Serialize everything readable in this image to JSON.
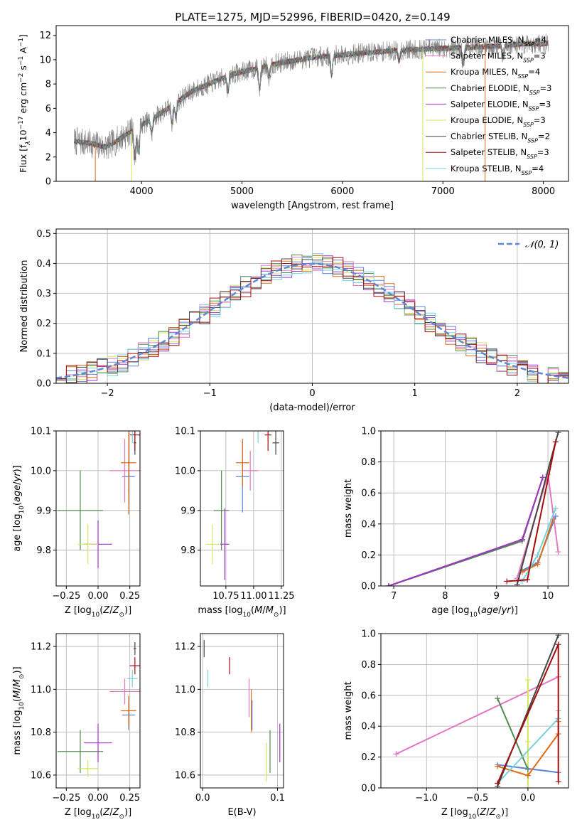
{
  "suptitle": "PLATE=1275, MJD=52996, FIBERID=0420, z=0.149",
  "colors": {
    "Chabrier MILES": "#5b87d6",
    "Salpeter MILES": "#e377c2",
    "Kroupa MILES": "#e06a14",
    "Chabrier ELODIE": "#4f8a4f",
    "Salpeter ELODIE": "#a233c8",
    "Kroupa ELODIE": "#d4e85a",
    "Chabrier STELIB": "#444444",
    "Salpeter STELIB": "#a50d0d",
    "Kroupa STELIB": "#77d1dc"
  },
  "chart_data": [
    {
      "id": "spectrum",
      "type": "line",
      "xlabel": "wavelength [Angstrom, rest frame]",
      "ylabel": "Flux [f_λ10^-17 erg cm^-2 s^-1 A^-1]",
      "xlim": [
        3150,
        8250
      ],
      "ylim": [
        0,
        12.8
      ],
      "xticks": [
        4000,
        5000,
        6000,
        7000,
        8000
      ],
      "yticks": [
        0,
        2,
        4,
        6,
        8,
        10,
        12
      ],
      "grid": false,
      "legend_position": "right",
      "legend": [
        {
          "label": "Chabrier MILES, N",
          "sub": "SSP",
          "suffix": "=4",
          "color_key": "Chabrier MILES"
        },
        {
          "label": "Salpeter MILES, N",
          "sub": "SSP",
          "suffix": "=3",
          "color_key": "Salpeter MILES"
        },
        {
          "label": "Kroupa MILES, N",
          "sub": "SSP",
          "suffix": "=4",
          "color_key": "Kroupa MILES"
        },
        {
          "label": "Chabrier ELODIE, N",
          "sub": "SSP",
          "suffix": "=3",
          "color_key": "Chabrier ELODIE"
        },
        {
          "label": "Salpeter ELODIE, N",
          "sub": "SSP",
          "suffix": "=3",
          "color_key": "Salpeter ELODIE"
        },
        {
          "label": "Kroupa ELODIE, N",
          "sub": "SSP",
          "suffix": "=3",
          "color_key": "Kroupa ELODIE"
        },
        {
          "label": "Chabrier STELIB, N",
          "sub": "SSP",
          "suffix": "=2",
          "color_key": "Chabrier STELIB"
        },
        {
          "label": "Salpeter STELIB, N",
          "sub": "SSP",
          "suffix": "=3",
          "color_key": "Salpeter STELIB"
        },
        {
          "label": "Kroupa STELIB, N",
          "sub": "SSP",
          "suffix": "=4",
          "color_key": "Kroupa STELIB"
        }
      ],
      "continuum": [
        [
          3330,
          3.3
        ],
        [
          3500,
          3.1
        ],
        [
          3650,
          2.8
        ],
        [
          3800,
          3.6
        ],
        [
          3950,
          4.4
        ],
        [
          4100,
          5.1
        ],
        [
          4300,
          6.2
        ],
        [
          4500,
          7.4
        ],
        [
          4700,
          8.1
        ],
        [
          4900,
          8.8
        ],
        [
          5100,
          9.2
        ],
        [
          5300,
          9.6
        ],
        [
          5500,
          9.9
        ],
        [
          5700,
          10.2
        ],
        [
          6000,
          10.4
        ],
        [
          6300,
          10.6
        ],
        [
          6600,
          10.8
        ],
        [
          6900,
          10.9
        ],
        [
          7200,
          11.0
        ],
        [
          7500,
          11.1
        ],
        [
          7800,
          11.3
        ],
        [
          8050,
          11.3
        ]
      ],
      "absorption_lines": [
        [
          3934,
          2.4
        ],
        [
          3969,
          2.2
        ],
        [
          4102,
          1.2
        ],
        [
          4304,
          1.4
        ],
        [
          4341,
          1.1
        ],
        [
          4861,
          1.3
        ],
        [
          5175,
          1.8
        ],
        [
          5270,
          0.9
        ],
        [
          5892,
          1.6
        ],
        [
          6563,
          0.8
        ],
        [
          7200,
          1.5
        ],
        [
          7600,
          1.0
        ]
      ],
      "edge_drops": [
        {
          "series": "Kroupa MILES",
          "x": 3540
        },
        {
          "series": "Kroupa ELODIE",
          "x": 3900
        },
        {
          "series": "Kroupa ELODIE",
          "x": 6800
        },
        {
          "series": "Kroupa MILES",
          "x": 7420
        }
      ]
    },
    {
      "id": "residuals",
      "type": "step-histogram",
      "xlabel": "(data-model)/error",
      "ylabel": "Normed distribution",
      "xlim": [
        -2.5,
        2.5
      ],
      "ylim": [
        0,
        0.515
      ],
      "xticks": [
        -2,
        -1,
        0,
        1,
        2
      ],
      "yticks": [
        0.0,
        0.1,
        0.2,
        0.3,
        0.4,
        0.5
      ],
      "grid": true,
      "bin_width": 0.1,
      "curve_label": "𝒩(0, 1)",
      "curve_color": "#5b87d6",
      "legend_position": "top-right"
    },
    {
      "id": "age-vs-Z",
      "type": "errorbar",
      "xlabel": "Z [log10(Z/Z⊙)]",
      "ylabel": "age  [log10(age/yr)]",
      "xlim": [
        -0.33,
        0.33
      ],
      "ylim": [
        9.71,
        10.1
      ],
      "xticks": [
        -0.25,
        0.0,
        0.25
      ],
      "yticks": [
        9.8,
        9.9,
        10.0,
        10.1
      ],
      "grid": true,
      "points": [
        {
          "series": "Chabrier MILES",
          "x": 0.24,
          "y": 9.985,
          "xerr": 0.05,
          "yerr": 0.04
        },
        {
          "series": "Salpeter MILES",
          "x": 0.21,
          "y": 10.0,
          "xerr": 0.12,
          "yerr": 0.08
        },
        {
          "series": "Kroupa MILES",
          "x": 0.24,
          "y": 10.02,
          "xerr": 0.06,
          "yerr": 0.13
        },
        {
          "series": "Chabrier ELODIE",
          "x": -0.14,
          "y": 9.9,
          "xerr": 0.18,
          "yerr": 0.1
        },
        {
          "series": "Salpeter ELODIE",
          "x": 0.0,
          "y": 9.815,
          "xerr": 0.11,
          "yerr": 0.06
        },
        {
          "series": "Kroupa ELODIE",
          "x": -0.08,
          "y": 9.815,
          "xerr": 0.08,
          "yerr": 0.05
        },
        {
          "series": "Chabrier STELIB",
          "x": 0.29,
          "y": 10.07,
          "xerr": 0.01,
          "yerr": 0.03
        },
        {
          "series": "Salpeter STELIB",
          "x": 0.29,
          "y": 10.09,
          "xerr": 0.04,
          "yerr": 0.04
        },
        {
          "series": "Kroupa STELIB",
          "x": 0.27,
          "y": 10.11,
          "xerr": 0.04,
          "yerr": 0.04
        }
      ]
    },
    {
      "id": "age-vs-mass",
      "type": "errorbar",
      "xlabel": "mass [log10(M/M⊙)]",
      "ylabel": "",
      "xlim": [
        10.52,
        11.27
      ],
      "ylim": [
        9.71,
        10.1
      ],
      "xticks": [
        10.75,
        11.0,
        11.25
      ],
      "yticks": [
        9.8,
        9.9,
        10.0,
        10.1
      ],
      "grid": true,
      "points": [
        {
          "series": "Chabrier MILES",
          "x": 10.9,
          "y": 9.985,
          "xerr": 0.06,
          "yerr": 0.09
        },
        {
          "series": "Salpeter MILES",
          "x": 10.97,
          "y": 10.0,
          "xerr": 0.07,
          "yerr": 0.05
        },
        {
          "series": "Kroupa MILES",
          "x": 10.9,
          "y": 10.02,
          "xerr": 0.06,
          "yerr": 0.06
        },
        {
          "series": "Chabrier ELODIE",
          "x": 10.71,
          "y": 9.9,
          "xerr": 0.07,
          "yerr": 0.1
        },
        {
          "series": "Salpeter ELODIE",
          "x": 10.74,
          "y": 9.815,
          "xerr": 0.04,
          "yerr": 0.09
        },
        {
          "series": "Kroupa ELODIE",
          "x": 10.63,
          "y": 9.815,
          "xerr": 0.06,
          "yerr": 0.05
        },
        {
          "series": "Chabrier STELIB",
          "x": 11.2,
          "y": 10.07,
          "xerr": 0.03,
          "yerr": 0.03
        },
        {
          "series": "Salpeter STELIB",
          "x": 11.13,
          "y": 10.09,
          "xerr": 0.03,
          "yerr": 0.04
        },
        {
          "series": "Kroupa STELIB",
          "x": 11.04,
          "y": 10.11,
          "xerr": 0.04,
          "yerr": 0.04
        }
      ]
    },
    {
      "id": "mass-weight-vs-age",
      "type": "line",
      "xlabel": "age  [log10(age/yr)]",
      "ylabel": "mass weight",
      "xlim": [
        6.75,
        10.4
      ],
      "ylim": [
        0,
        1.0
      ],
      "xticks": [
        7,
        8,
        9,
        10
      ],
      "yticks": [
        0.0,
        0.2,
        0.4,
        0.6,
        0.8,
        1.0
      ],
      "grid": true,
      "series": [
        {
          "name": "Kroupa ELODIE",
          "x": [
            6.9,
            9.5,
            9.9
          ],
          "y": [
            0.0,
            0.3,
            0.7
          ]
        },
        {
          "name": "Chabrier ELODIE",
          "x": [
            6.9,
            9.5,
            9.9
          ],
          "y": [
            0.0,
            0.29,
            0.7
          ]
        },
        {
          "name": "Salpeter ELODIE",
          "x": [
            6.9,
            9.5,
            9.9
          ],
          "y": [
            0.0,
            0.3,
            0.7
          ]
        },
        {
          "name": "Chabrier MILES",
          "x": [
            9.5,
            9.8,
            10.15
          ],
          "y": [
            0.1,
            0.15,
            0.45
          ]
        },
        {
          "name": "Kroupa MILES",
          "x": [
            9.5,
            9.8,
            10.1
          ],
          "y": [
            0.09,
            0.14,
            0.43
          ]
        },
        {
          "name": "Salpeter MILES",
          "x": [
            9.4,
            10.0,
            10.2
          ],
          "y": [
            0.05,
            0.72,
            0.22
          ]
        },
        {
          "name": "Kroupa STELIB",
          "x": [
            9.5,
            9.8,
            10.15
          ],
          "y": [
            0.03,
            0.2,
            0.5
          ]
        },
        {
          "name": "Chabrier STELIB",
          "x": [
            9.4,
            10.2
          ],
          "y": [
            0.01,
            0.99
          ]
        },
        {
          "name": "Salpeter STELIB",
          "x": [
            9.2,
            9.6,
            10.15
          ],
          "y": [
            0.03,
            0.04,
            0.93
          ]
        }
      ]
    },
    {
      "id": "mass-vs-Z",
      "type": "errorbar",
      "xlabel": "Z [log10(Z/Z⊙)]",
      "ylabel": "mass [log10(M/M⊙)]",
      "xlim": [
        -0.33,
        0.33
      ],
      "ylim": [
        10.54,
        11.26
      ],
      "xticks": [
        -0.25,
        0.0,
        0.25
      ],
      "yticks": [
        10.6,
        10.8,
        11.0,
        11.2
      ],
      "grid": true,
      "points": [
        {
          "series": "Chabrier MILES",
          "x": 0.24,
          "y": 10.88,
          "xerr": 0.05,
          "yerr": 0.07
        },
        {
          "series": "Salpeter MILES",
          "x": 0.21,
          "y": 10.99,
          "xerr": 0.12,
          "yerr": 0.06
        },
        {
          "series": "Kroupa MILES",
          "x": 0.24,
          "y": 10.9,
          "xerr": 0.06,
          "yerr": 0.07
        },
        {
          "series": "Chabrier ELODIE",
          "x": -0.14,
          "y": 10.71,
          "xerr": 0.18,
          "yerr": 0.1
        },
        {
          "series": "Salpeter ELODIE",
          "x": 0.0,
          "y": 10.75,
          "xerr": 0.11,
          "yerr": 0.09
        },
        {
          "series": "Kroupa ELODIE",
          "x": -0.08,
          "y": 10.63,
          "xerr": 0.08,
          "yerr": 0.04
        },
        {
          "series": "Chabrier STELIB",
          "x": 0.29,
          "y": 11.19,
          "xerr": 0.01,
          "yerr": 0.03
        },
        {
          "series": "Salpeter STELIB",
          "x": 0.29,
          "y": 11.11,
          "xerr": 0.04,
          "yerr": 0.04
        },
        {
          "series": "Kroupa STELIB",
          "x": 0.27,
          "y": 11.05,
          "xerr": 0.04,
          "yerr": 0.04
        }
      ]
    },
    {
      "id": "mass-vs-EBV",
      "type": "errorbar",
      "xlabel": "E(B-V)",
      "ylabel": "",
      "xlim": [
        -0.003,
        0.108
      ],
      "ylim": [
        10.54,
        11.26
      ],
      "xticks": [
        0.0,
        0.1
      ],
      "yticks": [
        10.6,
        10.8,
        11.0,
        11.2
      ],
      "grid": true,
      "points": [
        {
          "series": "Chabrier MILES",
          "x": 0.066,
          "y": 10.88,
          "xerr": 0.0,
          "yerr": 0.07
        },
        {
          "series": "Salpeter MILES",
          "x": 0.062,
          "y": 10.96,
          "xerr": 0.0,
          "yerr": 0.09
        },
        {
          "series": "Kroupa MILES",
          "x": 0.065,
          "y": 10.9,
          "xerr": 0.0,
          "yerr": 0.1
        },
        {
          "series": "Chabrier ELODIE",
          "x": 0.09,
          "y": 10.71,
          "xerr": 0.0,
          "yerr": 0.1
        },
        {
          "series": "Salpeter ELODIE",
          "x": 0.103,
          "y": 10.75,
          "xerr": 0.0,
          "yerr": 0.09
        },
        {
          "series": "Kroupa ELODIE",
          "x": 0.085,
          "y": 10.66,
          "xerr": 0.0,
          "yerr": 0.09
        },
        {
          "series": "Chabrier STELIB",
          "x": 0.002,
          "y": 11.19,
          "xerr": 0.0,
          "yerr": 0.04
        },
        {
          "series": "Salpeter STELIB",
          "x": 0.036,
          "y": 11.11,
          "xerr": 0.0,
          "yerr": 0.04
        },
        {
          "series": "Kroupa STELIB",
          "x": 0.007,
          "y": 11.05,
          "xerr": 0.0,
          "yerr": 0.04
        }
      ]
    },
    {
      "id": "mass-weight-vs-Z",
      "type": "line",
      "xlabel": "Z [log10(Z/Z⊙)]",
      "ylabel": "mass weight",
      "xlim": [
        -1.45,
        0.4
      ],
      "ylim": [
        0,
        1.0
      ],
      "xticks": [
        -1.0,
        -0.5,
        0.0
      ],
      "yticks": [
        0.0,
        0.2,
        0.4,
        0.6,
        0.8,
        1.0
      ],
      "grid": true,
      "series": [
        {
          "name": "Salpeter MILES",
          "x": [
            -1.3,
            0.3
          ],
          "y": [
            0.22,
            0.72
          ]
        },
        {
          "name": "Kroupa ELODIE",
          "x": [
            0.0,
            0.0,
            0.0
          ],
          "y": [
            0.7,
            0.3,
            0.0
          ]
        },
        {
          "name": "Chabrier ELODIE",
          "x": [
            -0.3,
            0.0
          ],
          "y": [
            0.58,
            0.12
          ]
        },
        {
          "name": "Chabrier MILES",
          "x": [
            -0.3,
            0.3
          ],
          "y": [
            0.15,
            0.1
          ]
        },
        {
          "name": "Kroupa MILES",
          "x": [
            -0.3,
            0.0,
            0.3,
            0.3
          ],
          "y": [
            0.14,
            0.08,
            0.35,
            0.43
          ]
        },
        {
          "name": "Kroupa STELIB",
          "x": [
            -0.3,
            0.3,
            0.3
          ],
          "y": [
            0.03,
            0.45,
            0.5
          ]
        },
        {
          "name": "Chabrier STELIB",
          "x": [
            -0.3,
            0.3
          ],
          "y": [
            0.01,
            0.99
          ]
        },
        {
          "name": "Salpeter STELIB",
          "x": [
            -0.3,
            0.3,
            0.3
          ],
          "y": [
            0.03,
            0.93,
            0.04
          ]
        }
      ]
    }
  ]
}
